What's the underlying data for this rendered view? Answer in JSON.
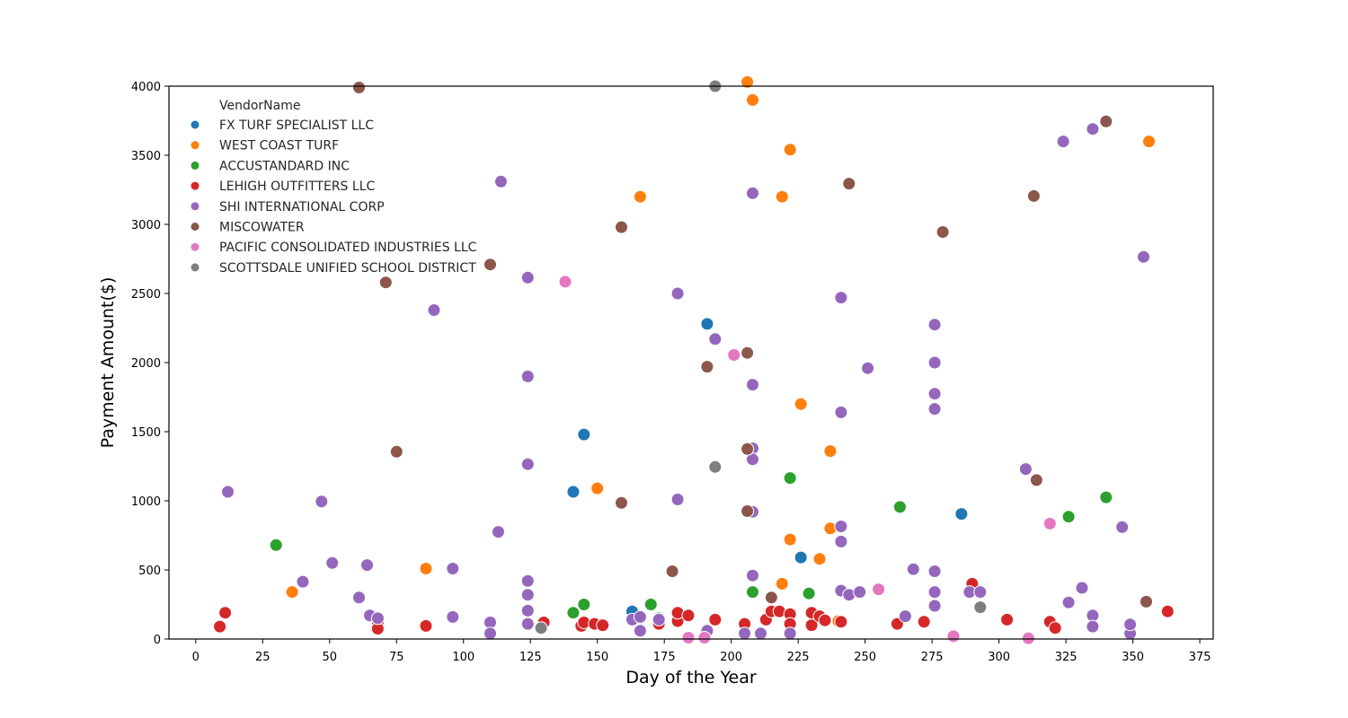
{
  "chart_data": {
    "type": "scatter",
    "xlabel": "Day of the Year",
    "ylabel": "Payment Amount($)",
    "xlim": [
      -10,
      380
    ],
    "ylim": [
      0,
      4000
    ],
    "xticks": [
      0,
      25,
      50,
      75,
      100,
      125,
      150,
      175,
      200,
      225,
      250,
      275,
      300,
      325,
      350,
      375
    ],
    "yticks": [
      0,
      500,
      1000,
      1500,
      2000,
      2500,
      3000,
      3500,
      4000
    ],
    "grid": false,
    "legend": {
      "title": "VendorName",
      "placement": "top-left"
    },
    "series": [
      {
        "name": "FX TURF SPECIALIST LLC",
        "color": "#1f77b4",
        "points": [
          [
            141,
            1065
          ],
          [
            145,
            1480
          ],
          [
            163,
            200
          ],
          [
            191,
            2280
          ],
          [
            226,
            590
          ],
          [
            286,
            905
          ]
        ]
      },
      {
        "name": "WEST COAST TURF",
        "color": "#ff7f0e",
        "points": [
          [
            36,
            340
          ],
          [
            86,
            510
          ],
          [
            150,
            1090
          ],
          [
            166,
            3200
          ],
          [
            206,
            4030
          ],
          [
            208,
            3900
          ],
          [
            219,
            3200
          ],
          [
            219,
            400
          ],
          [
            222,
            3540
          ],
          [
            222,
            720
          ],
          [
            226,
            1700
          ],
          [
            233,
            580
          ],
          [
            237,
            1360
          ],
          [
            237,
            800
          ],
          [
            240,
            130
          ],
          [
            356,
            3600
          ]
        ]
      },
      {
        "name": "ACCUSTANDARD INC",
        "color": "#2ca02c",
        "points": [
          [
            30,
            680
          ],
          [
            141,
            190
          ],
          [
            145,
            250
          ],
          [
            170,
            250
          ],
          [
            173,
            150
          ],
          [
            208,
            340
          ],
          [
            222,
            1165
          ],
          [
            229,
            330
          ],
          [
            263,
            955
          ],
          [
            326,
            885
          ],
          [
            340,
            1025
          ]
        ]
      },
      {
        "name": "LEHIGH OUTFITTERS LLC",
        "color": "#d62728",
        "points": [
          [
            9,
            90
          ],
          [
            11,
            190
          ],
          [
            68,
            120
          ],
          [
            68,
            75
          ],
          [
            86,
            95
          ],
          [
            130,
            120
          ],
          [
            144,
            95
          ],
          [
            145,
            120
          ],
          [
            149,
            110
          ],
          [
            152,
            100
          ],
          [
            173,
            110
          ],
          [
            180,
            130
          ],
          [
            180,
            190
          ],
          [
            184,
            170
          ],
          [
            194,
            140
          ],
          [
            205,
            110
          ],
          [
            213,
            140
          ],
          [
            215,
            200
          ],
          [
            218,
            200
          ],
          [
            222,
            180
          ],
          [
            222,
            110
          ],
          [
            230,
            100
          ],
          [
            230,
            190
          ],
          [
            233,
            165
          ],
          [
            235,
            135
          ],
          [
            241,
            125
          ],
          [
            262,
            110
          ],
          [
            272,
            125
          ],
          [
            290,
            400
          ],
          [
            303,
            140
          ],
          [
            319,
            125
          ],
          [
            321,
            80
          ],
          [
            363,
            200
          ]
        ]
      },
      {
        "name": "SHI INTERNATIONAL CORP",
        "color": "#9467bd",
        "points": [
          [
            12,
            1065
          ],
          [
            40,
            415
          ],
          [
            47,
            995
          ],
          [
            51,
            550
          ],
          [
            61,
            300
          ],
          [
            64,
            535
          ],
          [
            65,
            170
          ],
          [
            68,
            150
          ],
          [
            89,
            2380
          ],
          [
            96,
            510
          ],
          [
            96,
            160
          ],
          [
            110,
            120
          ],
          [
            110,
            40
          ],
          [
            113,
            775
          ],
          [
            114,
            3310
          ],
          [
            124,
            2615
          ],
          [
            124,
            1900
          ],
          [
            124,
            1265
          ],
          [
            124,
            420
          ],
          [
            124,
            320
          ],
          [
            124,
            205
          ],
          [
            124,
            110
          ],
          [
            163,
            140
          ],
          [
            166,
            160
          ],
          [
            166,
            60
          ],
          [
            173,
            140
          ],
          [
            180,
            2500
          ],
          [
            180,
            1010
          ],
          [
            191,
            60
          ],
          [
            194,
            2170
          ],
          [
            205,
            40
          ],
          [
            208,
            3225
          ],
          [
            208,
            1840
          ],
          [
            208,
            1380
          ],
          [
            208,
            1300
          ],
          [
            208,
            920
          ],
          [
            208,
            460
          ],
          [
            211,
            40
          ],
          [
            222,
            40
          ],
          [
            241,
            2470
          ],
          [
            241,
            1640
          ],
          [
            241,
            815
          ],
          [
            241,
            705
          ],
          [
            241,
            350
          ],
          [
            244,
            320
          ],
          [
            248,
            340
          ],
          [
            251,
            1960
          ],
          [
            265,
            165
          ],
          [
            268,
            505
          ],
          [
            276,
            2275
          ],
          [
            276,
            2000
          ],
          [
            276,
            1775
          ],
          [
            276,
            1665
          ],
          [
            276,
            490
          ],
          [
            276,
            340
          ],
          [
            276,
            240
          ],
          [
            289,
            340
          ],
          [
            293,
            340
          ],
          [
            310,
            1230
          ],
          [
            324,
            3600
          ],
          [
            326,
            265
          ],
          [
            331,
            370
          ],
          [
            335,
            3690
          ],
          [
            335,
            170
          ],
          [
            335,
            90
          ],
          [
            346,
            810
          ],
          [
            349,
            40
          ],
          [
            349,
            105
          ],
          [
            354,
            2765
          ]
        ]
      },
      {
        "name": "MISCOWATER",
        "color": "#8c564b",
        "points": [
          [
            61,
            3990
          ],
          [
            71,
            2580
          ],
          [
            75,
            1355
          ],
          [
            110,
            2710
          ],
          [
            159,
            2980
          ],
          [
            159,
            985
          ],
          [
            178,
            490
          ],
          [
            191,
            1970
          ],
          [
            206,
            2070
          ],
          [
            206,
            1375
          ],
          [
            206,
            925
          ],
          [
            215,
            300
          ],
          [
            244,
            3295
          ],
          [
            279,
            2945
          ],
          [
            313,
            3205
          ],
          [
            314,
            1150
          ],
          [
            340,
            3745
          ],
          [
            355,
            270
          ]
        ]
      },
      {
        "name": "PACIFIC CONSOLIDATED INDUSTRIES LLC",
        "color": "#e377c2",
        "points": [
          [
            138,
            2585
          ],
          [
            184,
            10
          ],
          [
            190,
            10
          ],
          [
            201,
            2055
          ],
          [
            255,
            360
          ],
          [
            283,
            20
          ],
          [
            311,
            5
          ],
          [
            319,
            835
          ]
        ]
      },
      {
        "name": "SCOTTSDALE UNIFIED SCHOOL DISTRICT",
        "color": "#7f7f7f",
        "points": [
          [
            129,
            80
          ],
          [
            194,
            4000
          ],
          [
            194,
            1245
          ],
          [
            293,
            230
          ]
        ]
      }
    ]
  }
}
